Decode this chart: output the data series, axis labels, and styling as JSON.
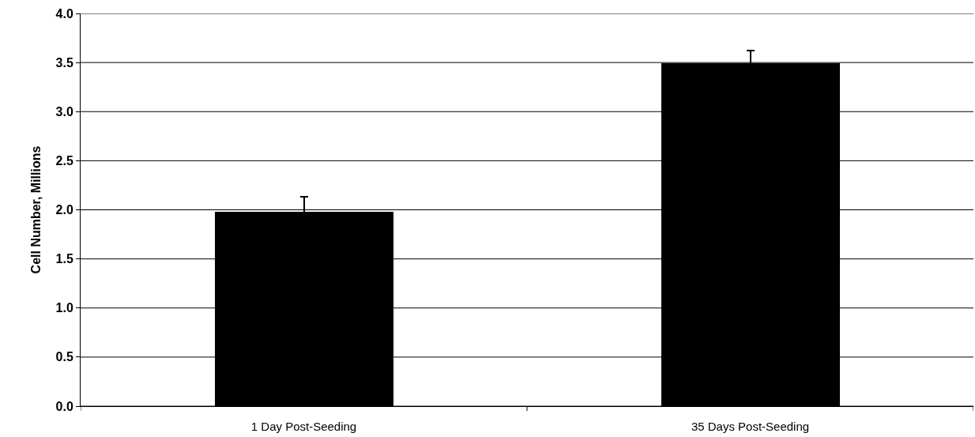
{
  "chart_data": {
    "type": "bar",
    "ylabel": "Cell Number, Millions",
    "categories": [
      "1 Day Post-Seeding",
      "35 Days Post-Seeding"
    ],
    "values": [
      1.98,
      3.49
    ],
    "errors": [
      0.15,
      0.13
    ],
    "color": "#000000",
    "ylim": [
      0,
      4
    ],
    "yticks": [
      {
        "value": 0,
        "label": "0.0"
      },
      {
        "value": 0.5,
        "label": "0.5"
      },
      {
        "value": 1,
        "label": "1.0"
      },
      {
        "value": 1.5,
        "label": "1.5"
      },
      {
        "value": 2,
        "label": "2.0"
      },
      {
        "value": 2.5,
        "label": "2.5"
      },
      {
        "value": 3,
        "label": "3.0"
      },
      {
        "value": 3.5,
        "label": "3.5"
      },
      {
        "value": 4,
        "label": "4.0"
      }
    ],
    "grid": "y"
  }
}
